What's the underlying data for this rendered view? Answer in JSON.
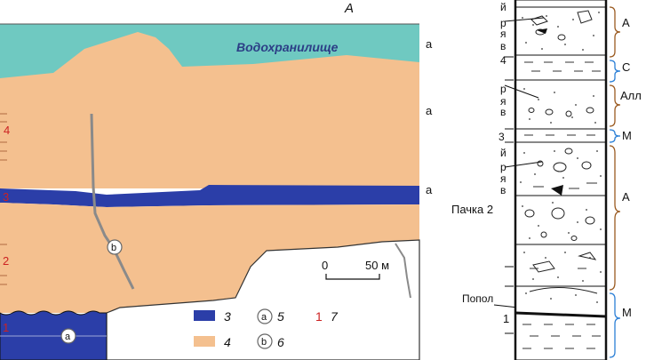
{
  "panel_label": "А",
  "reservoir_label": "Водохранилище",
  "right_edge_letters": [
    "а",
    "а",
    "а"
  ],
  "unit_numbers_left": [
    "4",
    "3",
    "2",
    "1"
  ],
  "scale_bar": {
    "zero": "0",
    "end": "50 м"
  },
  "markers": {
    "a": "a",
    "b": "b"
  },
  "legend": [
    {
      "symbol": "swatch",
      "color": "#2b3ea8",
      "label": "3"
    },
    {
      "symbol": "circle",
      "text": "a",
      "label": "5"
    },
    {
      "symbol": "number",
      "text": "1",
      "color": "#cc2222",
      "label": "7"
    },
    {
      "symbol": "swatch",
      "color": "#f4c08f",
      "label": "4"
    },
    {
      "symbol": "circle",
      "text": "b",
      "label": "6"
    }
  ],
  "column": {
    "cut_left_labels": [
      "й",
      "р",
      "я",
      "в",
      "4",
      "р",
      "я",
      "в",
      "3",
      "й",
      "р",
      "я",
      "в"
    ],
    "pachka_label": "Пачка 2",
    "pachka1_number": "1",
    "partial_label": "Попол",
    "bracket_labels": [
      "А",
      "С",
      "Алл",
      "М",
      "А",
      "М"
    ]
  },
  "colors": {
    "water": "#6fc9c1",
    "sediment": "#f4c08f",
    "layer": "#2b3ea8",
    "bedrock": "#ffffff",
    "number_red": "#cc2222",
    "bracket_brown": "#9a5a20",
    "bracket_blue": "#2b7fd6"
  }
}
